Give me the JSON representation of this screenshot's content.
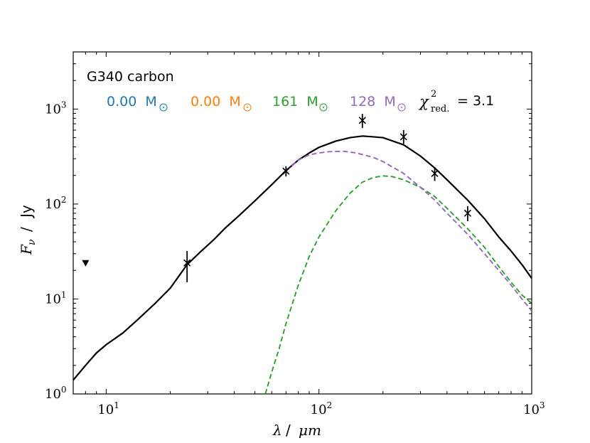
{
  "chart_data": {
    "type": "line",
    "scale": "log-log",
    "title": "G340 carbon",
    "xlabel_symbol": "λ",
    "xlabel_unit": "μm",
    "ylabel_symbol": "F",
    "ylabel_sub": "ν",
    "ylabel_unit": "Jy",
    "xlim": [
      7,
      1000
    ],
    "ylim": [
      1,
      4000
    ],
    "x_ticks": [
      {
        "base": "10",
        "exp": "1",
        "value": 10
      },
      {
        "base": "10",
        "exp": "2",
        "value": 100
      },
      {
        "base": "10",
        "exp": "3",
        "value": 1000
      }
    ],
    "y_ticks": [
      {
        "base": "10",
        "exp": "0",
        "value": 1
      },
      {
        "base": "10",
        "exp": "1",
        "value": 10
      },
      {
        "base": "10",
        "exp": "2",
        "value": 100
      },
      {
        "base": "10",
        "exp": "3",
        "value": 1000
      }
    ],
    "legend_masses": [
      {
        "value": "0.00",
        "unit": "M",
        "color": "#1f77b4"
      },
      {
        "value": "0.00",
        "unit": "M",
        "color": "#ff7f0e"
      },
      {
        "value": "161",
        "unit": "M",
        "color": "#2ca02c"
      },
      {
        "value": "128",
        "unit": "M",
        "color": "#9467bd"
      }
    ],
    "chi2": {
      "symbol": "χ",
      "exp": "2",
      "sub": "red.",
      "value": "= 3.1"
    },
    "series": [
      {
        "name": "total",
        "color": "#000000",
        "style": "solid",
        "points": [
          [
            7,
            1.4
          ],
          [
            8,
            2.0
          ],
          [
            9,
            2.7
          ],
          [
            10,
            3.3
          ],
          [
            12,
            4.4
          ],
          [
            14,
            6.0
          ],
          [
            17,
            9.0
          ],
          [
            20,
            13
          ],
          [
            24,
            23
          ],
          [
            28,
            32
          ],
          [
            32,
            42
          ],
          [
            36,
            55
          ],
          [
            42,
            75
          ],
          [
            50,
            108
          ],
          [
            60,
            160
          ],
          [
            70,
            225
          ],
          [
            80,
            290
          ],
          [
            90,
            345
          ],
          [
            100,
            395
          ],
          [
            120,
            460
          ],
          [
            140,
            500
          ],
          [
            160,
            520
          ],
          [
            180,
            510
          ],
          [
            200,
            500
          ],
          [
            250,
            420
          ],
          [
            300,
            320
          ],
          [
            350,
            240
          ],
          [
            400,
            180
          ],
          [
            500,
            110
          ],
          [
            600,
            70
          ],
          [
            700,
            45
          ],
          [
            800,
            32
          ],
          [
            900,
            23
          ],
          [
            1000,
            16.5
          ]
        ]
      },
      {
        "name": "component-green",
        "color": "#2ca02c",
        "style": "dashed",
        "points": [
          [
            56,
            1.0
          ],
          [
            60,
            1.7
          ],
          [
            65,
            3.0
          ],
          [
            70,
            5.5
          ],
          [
            80,
            14
          ],
          [
            90,
            28
          ],
          [
            100,
            45
          ],
          [
            120,
            85
          ],
          [
            140,
            130
          ],
          [
            160,
            170
          ],
          [
            180,
            190
          ],
          [
            200,
            198
          ],
          [
            220,
            195
          ],
          [
            250,
            180
          ],
          [
            300,
            150
          ],
          [
            350,
            120
          ],
          [
            400,
            90
          ],
          [
            500,
            55
          ],
          [
            600,
            35
          ],
          [
            700,
            22
          ],
          [
            800,
            15
          ],
          [
            900,
            11
          ],
          [
            1000,
            9
          ]
        ]
      },
      {
        "name": "component-purple",
        "color": "#9467bd",
        "style": "dashed",
        "points": [
          [
            70,
            222
          ],
          [
            80,
            290
          ],
          [
            90,
            330
          ],
          [
            100,
            345
          ],
          [
            110,
            355
          ],
          [
            130,
            360
          ],
          [
            150,
            345
          ],
          [
            180,
            310
          ],
          [
            200,
            280
          ],
          [
            250,
            210
          ],
          [
            300,
            150
          ],
          [
            350,
            110
          ],
          [
            400,
            80
          ],
          [
            500,
            48
          ],
          [
            600,
            30
          ],
          [
            700,
            20
          ],
          [
            800,
            14
          ],
          [
            900,
            10
          ],
          [
            1000,
            7.5
          ]
        ]
      }
    ],
    "observations": [
      {
        "x": 24,
        "y": 24,
        "ylo": 15,
        "yhi": 32
      },
      {
        "x": 70,
        "y": 222,
        "ylo": 195,
        "yhi": 250
      },
      {
        "x": 160,
        "y": 760,
        "ylo": 630,
        "yhi": 890
      },
      {
        "x": 250,
        "y": 510,
        "ylo": 430,
        "yhi": 600
      },
      {
        "x": 350,
        "y": 210,
        "ylo": 175,
        "yhi": 245
      },
      {
        "x": 500,
        "y": 80,
        "ylo": 66,
        "yhi": 95
      }
    ],
    "upper_limits": [
      {
        "x": 8,
        "y": 24
      }
    ]
  }
}
